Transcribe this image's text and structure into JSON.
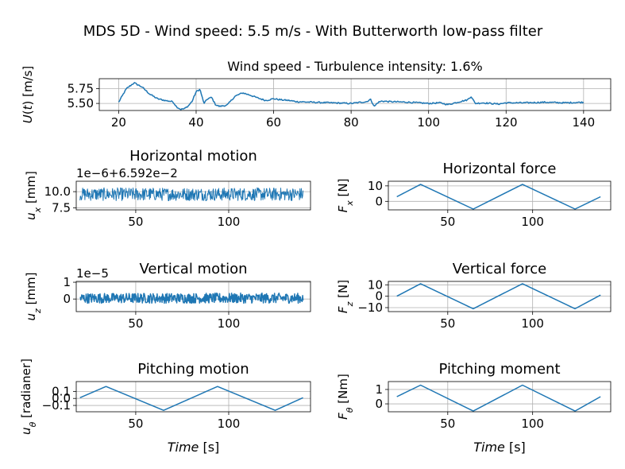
{
  "figure": {
    "title": "MDS 5D - Wind speed: 5.5 m/s - With Butterworth low-pass filter",
    "line_color": "#1f77b4"
  },
  "chart_data": [
    {
      "id": "wind",
      "type": "line",
      "title": "Wind speed - Turbulence intensity: 1.6%",
      "ylabel": "U(t) [m/s]",
      "xlabel": "",
      "xlim": [
        15,
        147
      ],
      "ylim": [
        5.38,
        5.92
      ],
      "xticks": [
        20,
        40,
        60,
        80,
        100,
        120,
        140
      ],
      "yticks": [
        5.5,
        5.75
      ],
      "ytick_labels": [
        "5.50",
        "5.75"
      ],
      "offset_text": "",
      "grid": true,
      "noise": 0.012,
      "x": [
        20,
        22,
        24,
        26,
        28,
        30,
        32,
        34,
        35,
        36,
        37,
        38,
        39,
        40,
        41,
        42,
        43,
        44,
        45,
        46,
        48,
        50,
        52,
        54,
        56,
        58,
        60,
        62,
        64,
        66,
        70,
        75,
        80,
        84,
        85,
        86,
        87,
        88,
        90,
        95,
        100,
        103,
        105,
        108,
        110,
        111,
        112,
        114,
        118,
        120,
        125,
        130,
        135,
        140
      ],
      "y": [
        5.52,
        5.75,
        5.85,
        5.78,
        5.66,
        5.58,
        5.55,
        5.53,
        5.44,
        5.4,
        5.41,
        5.46,
        5.54,
        5.7,
        5.74,
        5.5,
        5.58,
        5.6,
        5.48,
        5.45,
        5.47,
        5.62,
        5.68,
        5.64,
        5.59,
        5.55,
        5.58,
        5.56,
        5.55,
        5.53,
        5.52,
        5.51,
        5.5,
        5.53,
        5.57,
        5.45,
        5.52,
        5.54,
        5.53,
        5.52,
        5.5,
        5.51,
        5.48,
        5.53,
        5.56,
        5.62,
        5.5,
        5.51,
        5.49,
        5.51,
        5.51,
        5.52,
        5.51,
        5.52
      ]
    },
    {
      "id": "horizontal-motion",
      "type": "line",
      "title": "Horizontal motion",
      "ylabel": "u_x [mm]",
      "xlabel": "",
      "xlim": [
        18,
        144
      ],
      "ylim": [
        7.2,
        11.6
      ],
      "xticks": [
        50,
        100
      ],
      "yticks": [
        7.5,
        10.0
      ],
      "ytick_labels": [
        "7.5",
        "10.0"
      ],
      "offset_text": "1e−6+6.592e−2",
      "grid": true,
      "noise": 1.0,
      "x": [
        20,
        140
      ],
      "y": [
        9.6,
        9.6
      ]
    },
    {
      "id": "horizontal-force",
      "type": "line",
      "title": "Horizontal force",
      "ylabel": "F_x [N]",
      "xlabel": "",
      "xlim": [
        15,
        146
      ],
      "ylim": [
        -5.5,
        13
      ],
      "xticks": [
        50,
        100
      ],
      "yticks": [
        0,
        10
      ],
      "ytick_labels": [
        "0",
        "10"
      ],
      "offset_text": "",
      "grid": true,
      "noise": 0,
      "x": [
        20,
        34,
        65,
        94,
        125,
        140
      ],
      "y": [
        3,
        11,
        -5,
        11,
        -5,
        3
      ]
    },
    {
      "id": "vertical-motion",
      "type": "line",
      "title": "Vertical motion",
      "ylabel": "u_z [mm]",
      "xlabel": "",
      "xlim": [
        18,
        144
      ],
      "ylim": [
        -0.75,
        1.05
      ],
      "xticks": [
        50,
        100
      ],
      "yticks": [
        0,
        1
      ],
      "ytick_labels": [
        "0",
        "1"
      ],
      "offset_text": "1e−5",
      "grid": true,
      "noise": 0.3,
      "x": [
        20,
        140
      ],
      "y": [
        0.05,
        0.05
      ]
    },
    {
      "id": "vertical-force",
      "type": "line",
      "title": "Vertical force",
      "ylabel": "F_z [N]",
      "xlabel": "",
      "xlim": [
        15,
        146
      ],
      "ylim": [
        -13.5,
        13
      ],
      "xticks": [
        50,
        100
      ],
      "yticks": [
        -10,
        0,
        10
      ],
      "ytick_labels": [
        "−10",
        "0",
        "10"
      ],
      "offset_text": "",
      "grid": true,
      "noise": 0,
      "x": [
        20,
        34,
        65,
        94,
        125,
        140
      ],
      "y": [
        0,
        11,
        -11,
        11,
        -11,
        1
      ]
    },
    {
      "id": "pitching-motion",
      "type": "line",
      "title": "Pitching motion",
      "ylabel": "u_θ [radianer]",
      "xlabel": "Time [s]",
      "xlim": [
        18,
        144
      ],
      "ylim": [
        -0.19,
        0.24
      ],
      "xticks": [
        50,
        100
      ],
      "yticks": [
        -0.1,
        0,
        0.1
      ],
      "ytick_labels": [
        "−0.1",
        "0.0",
        "0.1"
      ],
      "offset_text": "",
      "grid": true,
      "noise": 0,
      "x": [
        20,
        34,
        65,
        94,
        125,
        140
      ],
      "y": [
        0.01,
        0.17,
        -0.17,
        0.17,
        -0.17,
        0.01
      ]
    },
    {
      "id": "pitching-moment",
      "type": "line",
      "title": "Pitching moment",
      "ylabel": "F_θ [Nm]",
      "xlabel": "Time [s]",
      "xlim": [
        15,
        146
      ],
      "ylim": [
        -0.55,
        1.55
      ],
      "xticks": [
        50,
        100
      ],
      "yticks": [
        0,
        1
      ],
      "ytick_labels": [
        "0",
        "1"
      ],
      "offset_text": "",
      "grid": true,
      "noise": 0,
      "x": [
        20,
        34,
        65,
        94,
        125,
        140
      ],
      "y": [
        0.5,
        1.3,
        -0.5,
        1.3,
        -0.5,
        0.5
      ]
    }
  ]
}
